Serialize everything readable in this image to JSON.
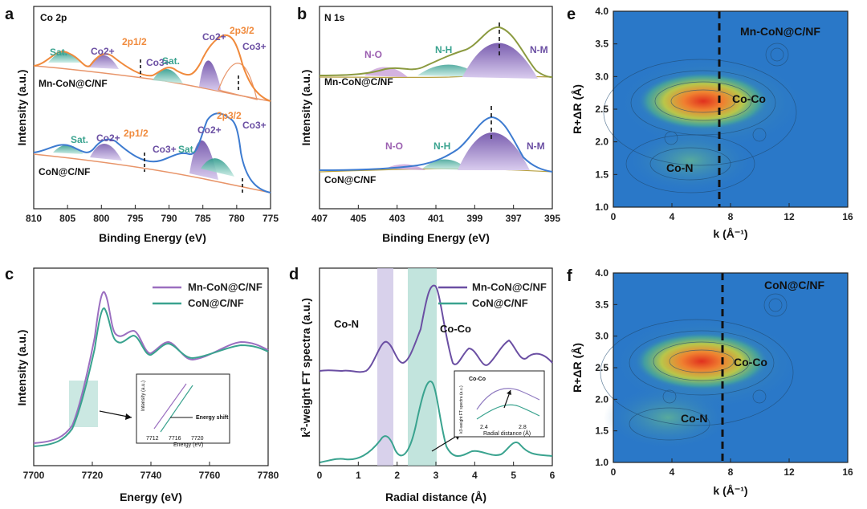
{
  "panel_a": {
    "letter": "a",
    "title": "Co 2p",
    "labels": {
      "sat": "Sat.",
      "co2": "Co2+",
      "co3": "Co3+",
      "p12": "2p1/2",
      "p32": "2p3/2"
    },
    "samples": [
      "Mn-CoN@C/NF",
      "CoN@C/NF"
    ],
    "x_ticks": [
      "810",
      "805",
      "800",
      "795",
      "790",
      "785",
      "780",
      "775"
    ],
    "xlabel": "Binding Energy (eV)",
    "ylabel": "Intensity (a.u.)"
  },
  "panel_b": {
    "letter": "b",
    "title": "N 1s",
    "labels": {
      "no": "N-O",
      "nh": "N-H",
      "nm": "N-M"
    },
    "samples": [
      "Mn-CoN@C/NF",
      "CoN@C/NF"
    ],
    "x_ticks": [
      "407",
      "405",
      "403",
      "401",
      "399",
      "397",
      "395"
    ],
    "xlabel": "Binding Energy (eV)",
    "ylabel": "Intensity (a.u.)"
  },
  "panel_c": {
    "letter": "c",
    "legend": [
      "Mn-CoN@C/NF",
      "CoN@C/NF"
    ],
    "x_ticks": [
      "7700",
      "7720",
      "7740",
      "7760",
      "7780"
    ],
    "xlabel": "Energy (eV)",
    "ylabel": "Intensity (a.u.)",
    "inset": {
      "annotation": "Energy shift",
      "ylabel": "Intensity (a.u.)",
      "ticks": [
        "7712",
        "7716",
        "7720"
      ],
      "xlabel": "Energy (eV)"
    }
  },
  "panel_d": {
    "letter": "d",
    "legend": [
      "Mn-CoN@C/NF",
      "CoN@C/NF"
    ],
    "labels": {
      "con": "Co-N",
      "coco": "Co-Co"
    },
    "x_ticks": [
      "0",
      "1",
      "2",
      "3",
      "4",
      "5",
      "6"
    ],
    "xlabel": "Radial distance (Å)",
    "ylabel_prefix": "k",
    "ylabel_sup": "3",
    "ylabel_suffix": "-weight FT spectra (a.u.)",
    "inset": {
      "annotation": "Co-Co",
      "ylabel": "k3-weight FT spectra (a.u.)",
      "ticks": [
        "2.4",
        "2.8"
      ],
      "xlabel": "Radial distance (Å)"
    }
  },
  "panel_e": {
    "letter": "e",
    "sample": "Mn-CoN@C/NF",
    "labels": {
      "coco": "Co-Co",
      "con": "Co-N"
    },
    "x_ticks": [
      "0",
      "4",
      "8",
      "12",
      "16"
    ],
    "y_ticks": [
      "1.0",
      "1.5",
      "2.0",
      "2.5",
      "3.0",
      "3.5",
      "4.0"
    ],
    "xlabel": "k (Å⁻¹)",
    "ylabel": "R+ΔR (Å)"
  },
  "panel_f": {
    "letter": "f",
    "sample": "CoN@C/NF",
    "labels": {
      "coco": "Co-Co",
      "con": "Co-N"
    },
    "x_ticks": [
      "0",
      "4",
      "8",
      "12",
      "16"
    ],
    "y_ticks": [
      "1.0",
      "1.5",
      "2.0",
      "2.5",
      "3.0",
      "3.5",
      "4.0"
    ],
    "xlabel": "k (Å⁻¹)",
    "ylabel": "R+ΔR (Å)"
  }
}
